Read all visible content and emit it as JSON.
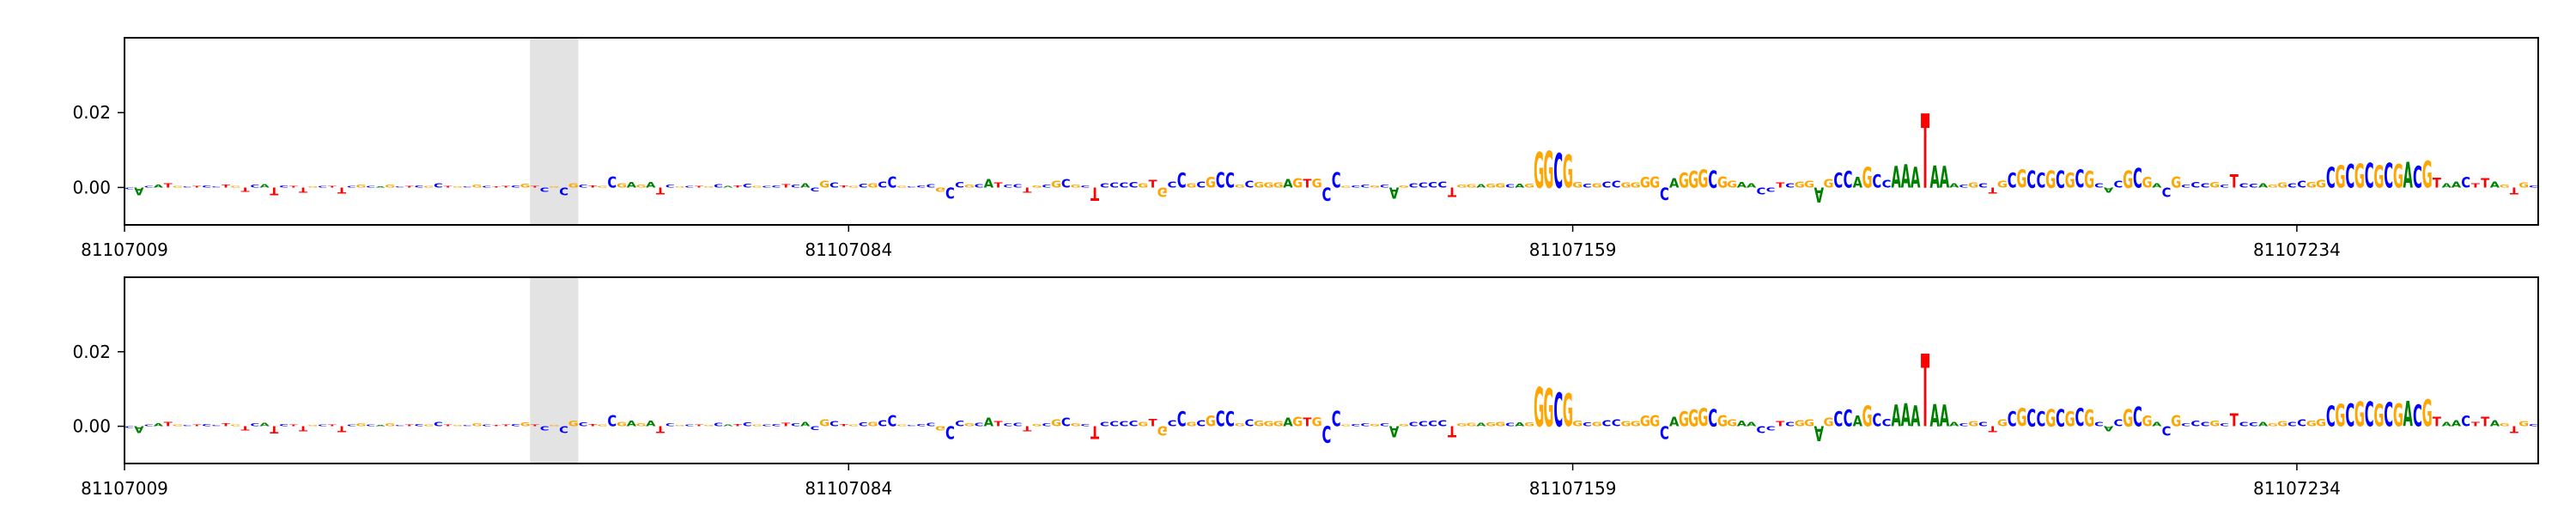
{
  "chart_data": [
    {
      "type": "logo",
      "start": 81107009,
      "xlim": [
        81107009,
        81107259
      ],
      "xticks": [
        81107009,
        81107084,
        81107159,
        81107234
      ],
      "ylim": [
        -0.01,
        0.04
      ],
      "yticks": [
        {
          "value": 0,
          "label": "0.00"
        },
        {
          "value": 0.02,
          "label": "0.02"
        }
      ],
      "highlight": [
        81107051,
        81107056
      ],
      "colors": {
        "A": "#008000",
        "C": "#0000ff",
        "G": "#ffa500",
        "T": "#ff0000"
      },
      "sequence": "CACATGCTCCTGTCATCTTGCTTCGCAGCTCGCTGCGCTTCGTCGCGCTGCGAGATCGCTGCATCGCCTCACGCTGCGCCGCCCGCCGCATCCTGCGCGCTCCCCGTGCCGCGCCGCGGGAGTGCCGCCGCAGCCCCTGGAGGCAGGGCGGCGCCGGGGCAGGGCGGAACCTCGGAGCCAGCCAAATAAACGCTGCGCCGCGCGCACGCGACGCCCGCTCCAGGCCGGCGCGCGCGACGTAACTTAGTGC",
      "values": [
        -0.0005,
        -0.002,
        0.0004,
        0.0008,
        0.0012,
        0.0005,
        0.0003,
        0.0004,
        0.0006,
        0.0003,
        0.0008,
        0.0004,
        -0.0012,
        0.0007,
        0.0009,
        -0.002,
        0.0006,
        0.0004,
        -0.0014,
        0.0003,
        0.0005,
        0.0004,
        -0.0016,
        0.0005,
        0.0008,
        0.0004,
        0.0003,
        0.0007,
        0.0003,
        0.0004,
        0.0006,
        0.0004,
        0.0012,
        0.0005,
        0.0003,
        0.0003,
        0.0008,
        0.0005,
        0.0003,
        0.0004,
        0.0006,
        0.001,
        0.0005,
        -0.0012,
        0.0003,
        -0.002,
        0.0012,
        0.0008,
        0.0006,
        0.0004,
        0.003,
        0.0012,
        0.0015,
        0.0008,
        0.0015,
        -0.0018,
        0.0008,
        0.0003,
        0.0004,
        0.0005,
        0.0003,
        0.0009,
        0.0004,
        0.0006,
        0.0011,
        0.0005,
        0.0004,
        0.0006,
        0.0009,
        0.0007,
        0.0012,
        -0.001,
        0.0018,
        0.0014,
        0.0006,
        0.0004,
        0.001,
        0.0012,
        0.0016,
        0.003,
        0.0005,
        0.0003,
        0.0006,
        0.0009,
        -0.0012,
        -0.003,
        0.0015,
        0.0007,
        0.0009,
        0.0022,
        0.0014,
        0.0008,
        0.0009,
        -0.0014,
        0.0006,
        0.0008,
        0.0018,
        0.0022,
        0.0008,
        0.0006,
        -0.0035,
        0.0012,
        0.0013,
        0.0014,
        0.0015,
        0.0012,
        0.002,
        -0.0025,
        0.0016,
        0.004,
        0.0012,
        0.0016,
        0.0028,
        0.0042,
        0.004,
        0.0008,
        0.0018,
        0.0015,
        0.0014,
        0.0013,
        0.0022,
        0.0025,
        0.0022,
        0.0024,
        -0.0035,
        0.0042,
        0.0005,
        0.0006,
        0.0008,
        0.0006,
        0.0007,
        -0.003,
        0.0006,
        0.0012,
        0.0014,
        0.0015,
        0.0016,
        -0.0025,
        0.0008,
        0.0009,
        0.0009,
        0.001,
        0.0012,
        0.0009,
        0.001,
        0.0011,
        0.0095,
        0.0098,
        0.0092,
        0.0088,
        0.0015,
        0.001,
        0.0012,
        0.0016,
        0.0018,
        0.0013,
        0.0014,
        0.0028,
        0.003,
        -0.0032,
        0.0025,
        0.004,
        0.0045,
        0.0048,
        0.0046,
        0.003,
        0.0018,
        0.0015,
        0.0012,
        -0.0018,
        -0.0012,
        0.0014,
        0.0012,
        0.0016,
        0.0018,
        -0.004,
        0.0022,
        0.004,
        0.0045,
        0.0028,
        0.0055,
        0.0035,
        0.002,
        0.0058,
        0.0062,
        0.0055,
        0.0198,
        0.006,
        0.0058,
        0.0012,
        0.0008,
        0.0014,
        0.0012,
        -0.0016,
        0.0018,
        0.004,
        0.0048,
        0.0046,
        0.004,
        0.0046,
        0.0046,
        0.004,
        0.0048,
        0.0045,
        0.0012,
        -0.0014,
        0.0018,
        0.0046,
        0.0052,
        0.0028,
        0.0012,
        -0.0025,
        0.003,
        0.0008,
        0.0015,
        0.0012,
        0.0015,
        0.0008,
        0.0035,
        0.0012,
        0.001,
        0.0012,
        0.0008,
        0.0014,
        0.0012,
        0.0018,
        0.0015,
        0.002,
        0.0055,
        0.006,
        0.0062,
        0.0064,
        0.0066,
        0.006,
        0.0065,
        0.0062,
        0.0068,
        0.0058,
        0.0072,
        0.0026,
        0.0012,
        0.0016,
        0.0028,
        0.0012,
        0.0025,
        0.0016,
        0.0008,
        -0.0018,
        0.0014,
        0.0006
      ]
    },
    {
      "type": "logo",
      "start": 81107009,
      "xlim": [
        81107009,
        81107259
      ],
      "xticks": [
        81107009,
        81107084,
        81107159,
        81107234
      ],
      "ylim": [
        -0.01,
        0.04
      ],
      "yticks": [
        {
          "value": 0,
          "label": "0.00"
        },
        {
          "value": 0.02,
          "label": "0.02"
        }
      ],
      "highlight": [
        81107051,
        81107056
      ],
      "colors": {
        "A": "#008000",
        "C": "#0000ff",
        "G": "#ffa500",
        "T": "#ff0000"
      },
      "sequence": "CACATGCTCCTGTCATCTTGCTTCGCAGCTCGCTGCGCTTCGTCGCGCTGCGAGATCGCTGCATCGCCTCACGCTGCGCCGCCCGCCGCATCCTGCGCGCTCCCCGTGCCGCGCCGCGGGAGTGCCGCCGCAGCCCCTGGAGGCAGGGCGGCGCCGGGGCAGGGCGGAACCTCGGAGCCAGCCAAATAAACGCTGCGCCGCGCGCACGCGACGCCCGCTCCAGGCCGGCGCGCGCGACGTAACTTAGTGC",
      "values": [
        -0.0005,
        -0.0018,
        0.0004,
        0.0008,
        0.0012,
        0.0005,
        0.0003,
        0.0004,
        0.0006,
        0.0003,
        0.0008,
        0.0004,
        -0.0012,
        0.0007,
        0.0009,
        -0.002,
        0.0006,
        0.0004,
        -0.0014,
        0.0003,
        0.0005,
        0.0004,
        -0.0016,
        0.0005,
        0.0008,
        0.0004,
        0.0003,
        0.0007,
        0.0003,
        0.0004,
        0.0006,
        0.0004,
        0.0012,
        0.0005,
        0.0003,
        0.0003,
        0.0008,
        0.0005,
        0.0003,
        0.0004,
        0.0006,
        0.001,
        0.0005,
        -0.0012,
        0.0003,
        -0.0018,
        0.0015,
        0.001,
        0.0006,
        0.0004,
        0.003,
        0.0012,
        0.0015,
        0.0008,
        0.0015,
        -0.0018,
        0.0008,
        0.0003,
        0.0004,
        0.0005,
        0.0003,
        0.0009,
        0.0004,
        0.0006,
        0.0011,
        0.0005,
        0.0004,
        0.0006,
        0.0009,
        0.0007,
        0.0012,
        -0.001,
        0.0018,
        0.0014,
        0.0006,
        0.0004,
        0.001,
        0.0012,
        0.0016,
        0.003,
        0.0005,
        0.0003,
        0.0006,
        0.0009,
        -0.0012,
        -0.0035,
        0.0015,
        0.0007,
        0.0009,
        0.0022,
        0.0014,
        0.0008,
        0.0009,
        -0.0014,
        0.0006,
        0.0008,
        0.0018,
        0.0022,
        0.0008,
        0.0006,
        -0.0035,
        0.0012,
        0.0013,
        0.0014,
        0.0015,
        0.0012,
        0.002,
        -0.0025,
        0.0016,
        0.004,
        0.0012,
        0.0016,
        0.0028,
        0.0042,
        0.004,
        0.0008,
        0.0018,
        0.0015,
        0.0014,
        0.0013,
        0.0022,
        0.0025,
        0.0022,
        0.0024,
        -0.0045,
        0.0042,
        0.0005,
        0.0006,
        0.0008,
        0.0006,
        0.0007,
        -0.003,
        0.0006,
        0.0012,
        0.0014,
        0.0015,
        0.0016,
        -0.003,
        0.0008,
        0.0009,
        0.0009,
        0.001,
        0.0012,
        0.0009,
        0.001,
        0.0011,
        0.0105,
        0.0102,
        0.0092,
        0.0088,
        0.0015,
        0.001,
        0.0012,
        0.0016,
        0.0018,
        0.0013,
        0.0014,
        0.0028,
        0.003,
        -0.0035,
        0.0025,
        0.004,
        0.0045,
        0.0048,
        0.0046,
        0.003,
        0.0018,
        0.0015,
        0.0012,
        -0.0018,
        -0.0012,
        0.0014,
        0.0012,
        0.0016,
        0.0018,
        -0.004,
        0.0022,
        0.004,
        0.0045,
        0.0028,
        0.0055,
        0.0035,
        0.002,
        0.0058,
        0.0062,
        0.0055,
        0.0195,
        0.006,
        0.0058,
        0.0012,
        0.0008,
        0.0014,
        0.0012,
        -0.0016,
        0.0018,
        0.004,
        0.0048,
        0.0046,
        0.004,
        0.0046,
        0.0046,
        0.004,
        0.0048,
        0.0045,
        0.0012,
        -0.0014,
        0.0018,
        0.0046,
        0.0052,
        0.0028,
        0.0012,
        -0.0025,
        0.003,
        0.0008,
        0.0015,
        0.0012,
        0.0015,
        0.0008,
        0.0035,
        0.0012,
        0.001,
        0.0012,
        0.0008,
        0.0014,
        0.0012,
        0.0018,
        0.0015,
        0.002,
        0.0055,
        0.006,
        0.0062,
        0.0066,
        0.0066,
        0.006,
        0.0065,
        0.0062,
        0.0068,
        0.0058,
        0.0072,
        0.0026,
        0.0012,
        0.0016,
        0.0028,
        0.0012,
        0.0025,
        0.0016,
        0.0008,
        -0.0018,
        0.0014,
        0.0006
      ]
    }
  ]
}
